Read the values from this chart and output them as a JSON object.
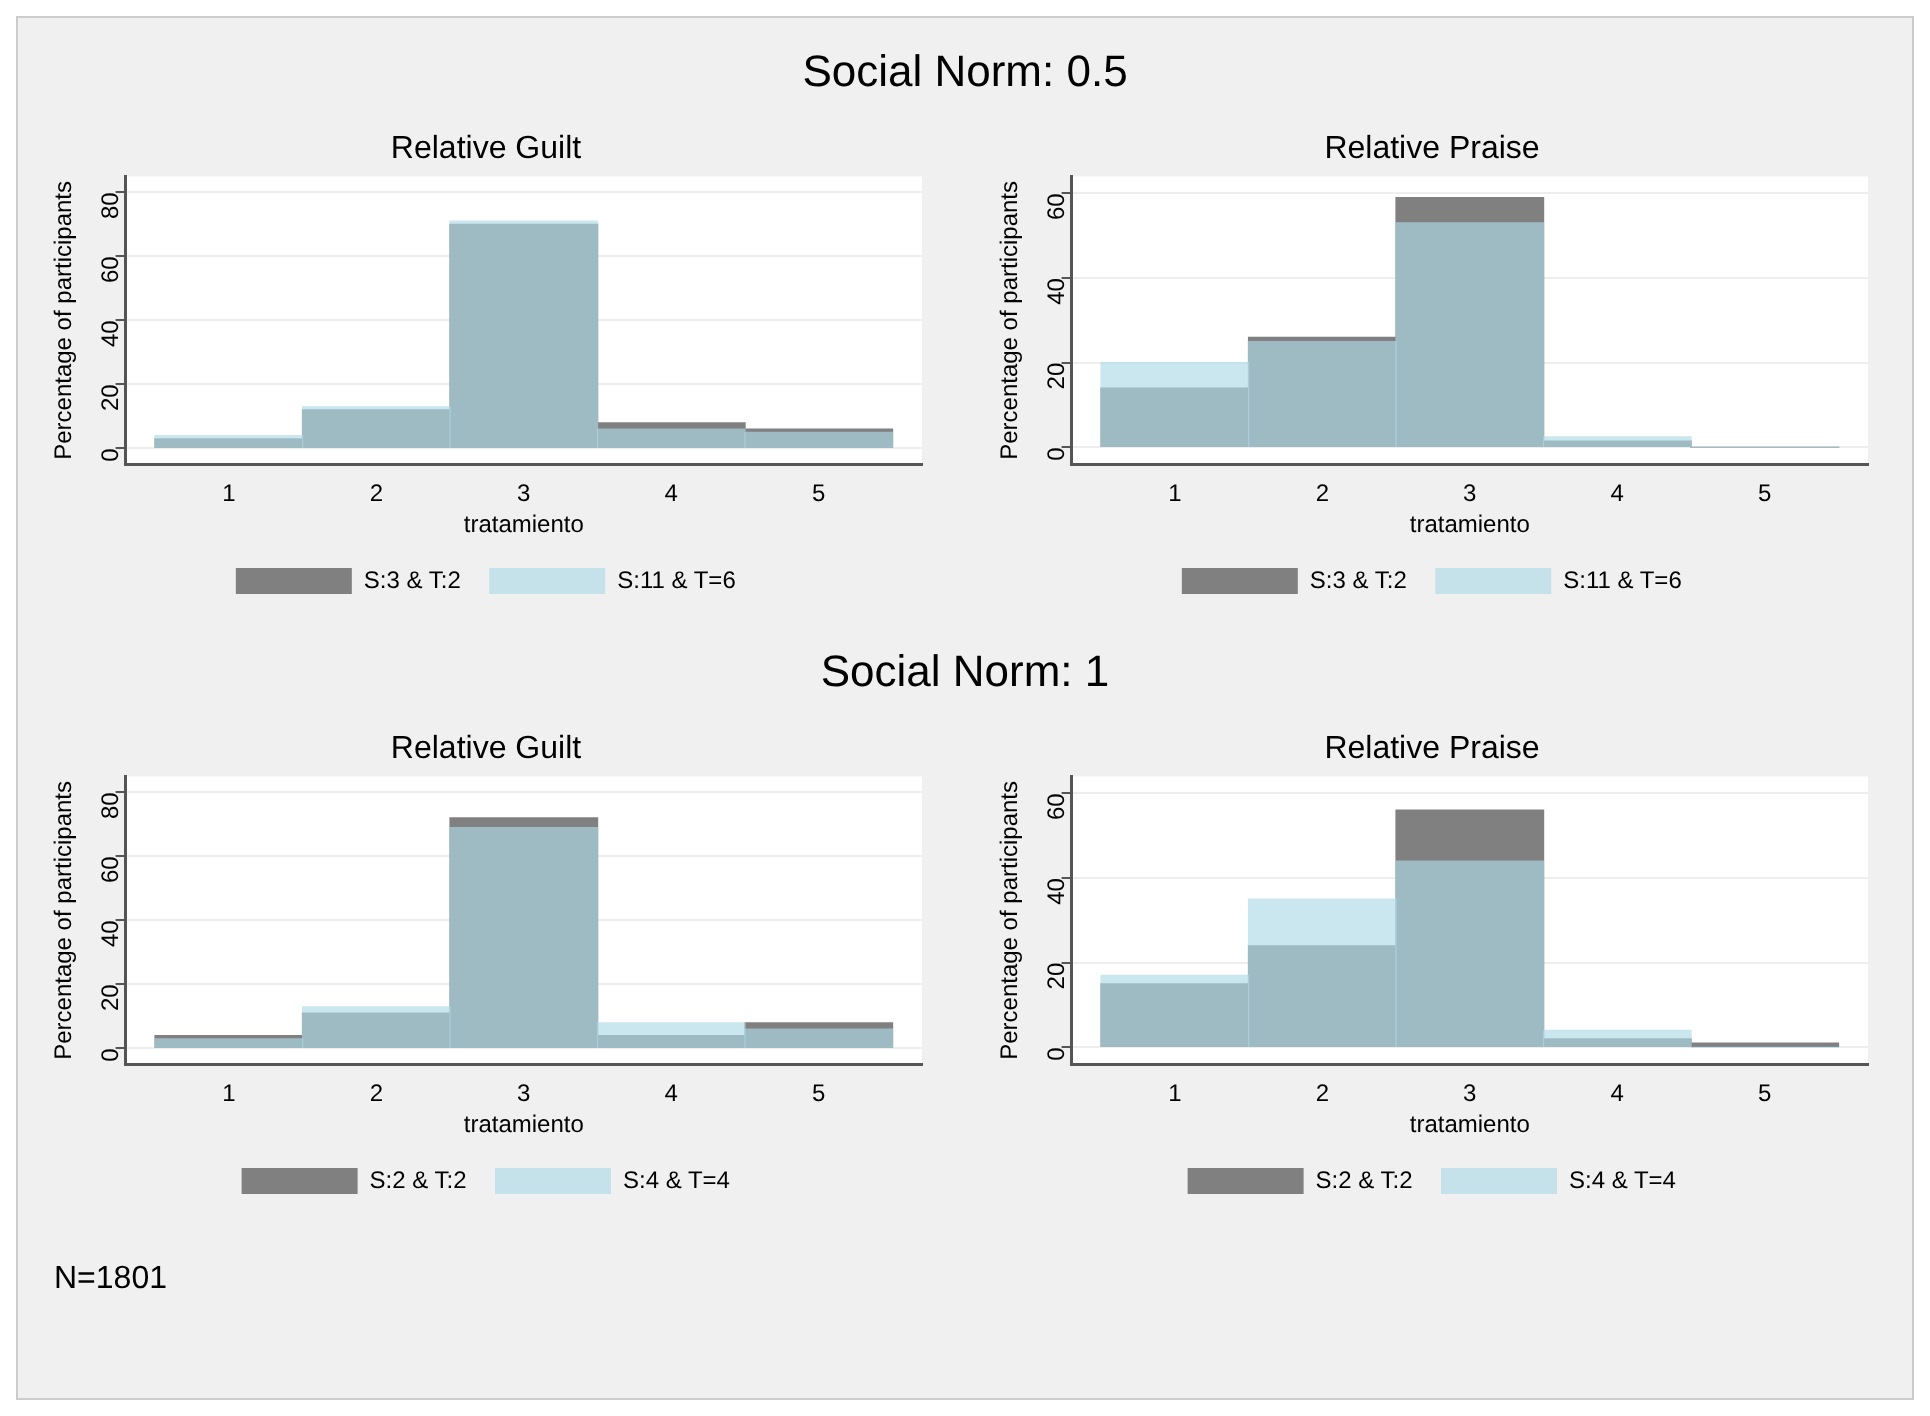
{
  "chart_data": [
    {
      "type": "other",
      "title": "Social Norm: 0.5"
    },
    {
      "type": "histogram",
      "title": "Relative Guilt",
      "xlabel": "tratamiento",
      "ylabel": "Percentage of participants",
      "bins": [
        0.5,
        1.5,
        2.5,
        3.5,
        4.5,
        5.5
      ],
      "xlim": [
        0.3,
        5.7
      ],
      "xticks": [
        1,
        2,
        3,
        4,
        5
      ],
      "ylim": [
        -5,
        85
      ],
      "yticks": [
        0,
        20,
        40,
        60,
        80
      ],
      "grid": "y",
      "legend": "bottom",
      "series": [
        {
          "name": "S:3 & T:2",
          "color": "#808080",
          "values": [
            3,
            12,
            70,
            8,
            6
          ]
        },
        {
          "name": "S:11 & T=6",
          "color": "#add8e6",
          "values": [
            4,
            13,
            71,
            6,
            5
          ]
        }
      ]
    },
    {
      "type": "histogram",
      "title": "Relative Praise",
      "xlabel": "tratamiento",
      "ylabel": "Percentage of participants",
      "bins": [
        0.5,
        1.5,
        2.5,
        3.5,
        4.5,
        5.5
      ],
      "xlim": [
        0.3,
        5.7
      ],
      "xticks": [
        1,
        2,
        3,
        4,
        5
      ],
      "ylim": [
        -4,
        64
      ],
      "yticks": [
        0,
        20,
        40,
        60
      ],
      "grid": "y",
      "legend": "bottom",
      "series": [
        {
          "name": "S:3 & T:2",
          "color": "#808080",
          "values": [
            14,
            26,
            59,
            1.5,
            0
          ]
        },
        {
          "name": "S:11 & T=6",
          "color": "#add8e6",
          "values": [
            20,
            25,
            53,
            2.5,
            0
          ]
        }
      ]
    },
    {
      "type": "other",
      "title": "Social Norm: 1"
    },
    {
      "type": "histogram",
      "title": "Relative Guilt",
      "xlabel": "tratamiento",
      "ylabel": "Percentage of participants",
      "bins": [
        0.5,
        1.5,
        2.5,
        3.5,
        4.5,
        5.5
      ],
      "xlim": [
        0.3,
        5.7
      ],
      "xticks": [
        1,
        2,
        3,
        4,
        5
      ],
      "ylim": [
        -5,
        85
      ],
      "yticks": [
        0,
        20,
        40,
        60,
        80
      ],
      "grid": "y",
      "legend": "bottom",
      "series": [
        {
          "name": "S:2 & T:2",
          "color": "#808080",
          "values": [
            4,
            11,
            72,
            4,
            8
          ]
        },
        {
          "name": "S:4 & T=4",
          "color": "#add8e6",
          "values": [
            3,
            13,
            69,
            8,
            6
          ]
        }
      ]
    },
    {
      "type": "histogram",
      "title": "Relative Praise",
      "xlabel": "tratamiento",
      "ylabel": "Percentage of participants",
      "bins": [
        0.5,
        1.5,
        2.5,
        3.5,
        4.5,
        5.5
      ],
      "xlim": [
        0.3,
        5.7
      ],
      "xticks": [
        1,
        2,
        3,
        4,
        5
      ],
      "ylim": [
        -4,
        64
      ],
      "yticks": [
        0,
        20,
        40,
        60
      ],
      "grid": "y",
      "legend": "bottom",
      "series": [
        {
          "name": "S:2 & T:2",
          "color": "#808080",
          "values": [
            15,
            24,
            56,
            2,
            1
          ]
        },
        {
          "name": "S:4 & T=4",
          "color": "#add8e6",
          "values": [
            17,
            35,
            44,
            4,
            0
          ]
        }
      ]
    },
    {
      "type": "other",
      "annotations": [
        "N=1801"
      ]
    }
  ]
}
